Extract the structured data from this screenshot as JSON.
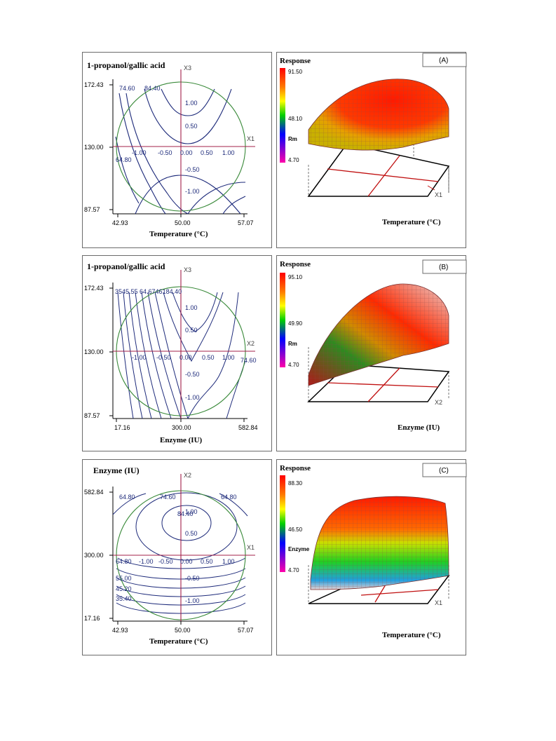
{
  "figures": [
    {
      "contour": {
        "y_title": "1-propanol/gallic acid",
        "x_title": "Temperature (°C)",
        "y_ticks": [
          "172.43",
          "130.00",
          "87.57"
        ],
        "x_ticks": [
          "42.93",
          "50.00",
          "57.07"
        ],
        "axis_x_name": "X1",
        "axis_y_name": "X3",
        "coded_x": [
          "-1.00",
          "-0.50",
          "0.00",
          "0.50",
          "1.00"
        ],
        "coded_y": [
          "1.00",
          "0.50",
          "-0.50",
          "-1.00"
        ],
        "contour_labels": [
          "74.60",
          "84.40",
          "64.80"
        ]
      },
      "surface": {
        "title": "Response",
        "panel_label": "(A)",
        "legend_values": [
          "91.50",
          "48.10",
          "4.70"
        ],
        "legend_var": "Rm",
        "axis_name": "X1",
        "x_title": "Temperature (°C)"
      }
    },
    {
      "contour": {
        "y_title": "1-propanol/gallic acid",
        "x_title": "Enzyme (IU)",
        "y_ticks": [
          "172.43",
          "130.00",
          "87.57"
        ],
        "x_ticks": [
          "17.16",
          "300.00",
          "582.84"
        ],
        "axis_x_name": "X2",
        "axis_y_name": "X3",
        "coded_x": [
          "-1.00",
          "-0.50",
          "0.00",
          "0.50",
          "1.00"
        ],
        "coded_y": [
          "1.00",
          "0.50",
          "-0.50",
          "-1.00"
        ],
        "contour_labels": [
          "3545.55 64.6746184.40",
          "74.60"
        ]
      },
      "surface": {
        "title": "Response",
        "panel_label": "(B)",
        "legend_values": [
          "95.10",
          "49.90",
          "4.70"
        ],
        "legend_var": "Rm",
        "axis_name": "X2",
        "x_title": "Enzyme (IU)"
      }
    },
    {
      "contour": {
        "y_title": "Enzyme (IU)",
        "x_title": "Temperature (°C)",
        "y_ticks": [
          "582.84",
          "300.00",
          "17.16"
        ],
        "x_ticks": [
          "42.93",
          "50.00",
          "57.07"
        ],
        "axis_x_name": "X1",
        "axis_y_name": "X2",
        "coded_x": [
          "-1.00",
          "-0.50",
          "0.00",
          "0.50",
          "1.00"
        ],
        "coded_y": [
          "1.00",
          "0.50",
          "-0.50",
          "-1.00"
        ],
        "contour_labels": [
          "64.80",
          "74.60",
          "84.40",
          "64.80",
          "64.80",
          "55.00",
          "45.20",
          "35.40"
        ]
      },
      "surface": {
        "title": "Response",
        "panel_label": "(C)",
        "legend_values": [
          "88.30",
          "46.50",
          "4.70"
        ],
        "legend_var": "Enzyme",
        "axis_name": "X1",
        "x_title": "Temperature (°C)"
      }
    }
  ],
  "chart_data": [
    {
      "type": "heatmap",
      "title": "",
      "xlabel": "Temperature (°C)",
      "ylabel": "1-propanol/gallic acid",
      "xlim": [
        42.93,
        57.07
      ],
      "ylim": [
        87.57,
        172.43
      ],
      "contour_levels": [
        64.8,
        74.6,
        84.4
      ]
    },
    {
      "type": "area",
      "title": "Response",
      "xlabel": "Temperature (°C)",
      "zlim": [
        4.7,
        91.5
      ]
    },
    {
      "type": "heatmap",
      "title": "",
      "xlabel": "Enzyme (IU)",
      "ylabel": "1-propanol/gallic acid",
      "xlim": [
        17.16,
        582.84
      ],
      "ylim": [
        87.57,
        172.43
      ],
      "contour_levels": [
        35,
        45,
        55,
        64.6,
        74.6,
        84.4
      ]
    },
    {
      "type": "area",
      "title": "Response",
      "xlabel": "Enzyme (IU)",
      "zlim": [
        4.7,
        95.1
      ]
    },
    {
      "type": "heatmap",
      "title": "",
      "xlabel": "Temperature (°C)",
      "ylabel": "Enzyme (IU)",
      "xlim": [
        42.93,
        57.07
      ],
      "ylim": [
        17.16,
        582.84
      ],
      "contour_levels": [
        35.4,
        45.2,
        55.0,
        64.8,
        74.6,
        84.4
      ]
    },
    {
      "type": "area",
      "title": "Response",
      "xlabel": "Temperature (°C)",
      "zlim": [
        4.7,
        88.3
      ]
    }
  ]
}
